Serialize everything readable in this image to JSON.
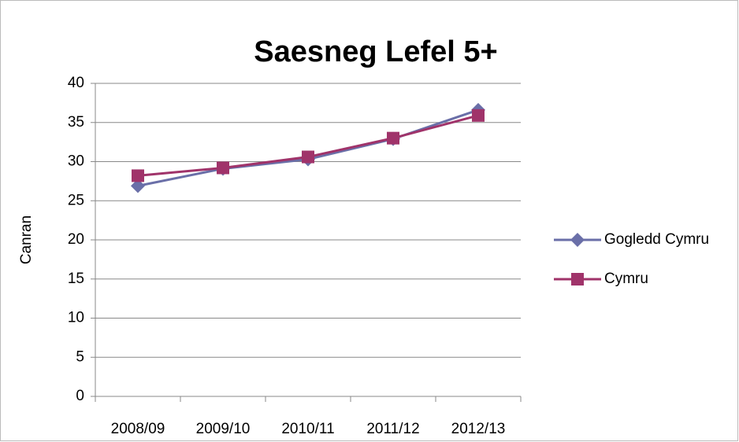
{
  "chart_data": {
    "type": "line",
    "title": "Saesneg Lefel 5+",
    "y_label": "Canran",
    "categories": [
      "2008/09",
      "2009/10",
      "2010/11",
      "2011/12",
      "2012/13"
    ],
    "series": [
      {
        "name": "Gogledd Cymru",
        "color": "#6a6fa8",
        "marker": "diamond",
        "values": [
          26.9,
          29.1,
          30.3,
          32.9,
          36.6
        ]
      },
      {
        "name": "Cymru",
        "color": "#a0336a",
        "marker": "square",
        "values": [
          28.2,
          29.2,
          30.6,
          33.0,
          35.9
        ]
      }
    ],
    "ylim": [
      0,
      40
    ],
    "yticks": [
      0,
      5,
      10,
      15,
      20,
      25,
      30,
      35,
      40
    ],
    "grid": true,
    "legend": "right"
  }
}
